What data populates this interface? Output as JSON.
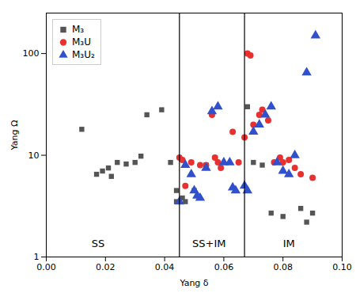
{
  "chart_data": {
    "type": "scatter",
    "xlabel": "Yang δ",
    "ylabel": "Yang Ω",
    "log": "y",
    "grid": false,
    "legend": "upper left",
    "xlim": [
      0.0,
      0.1
    ],
    "ylim": [
      1,
      250
    ],
    "xticks": [
      {
        "value": 0.0,
        "label": "0.00"
      },
      0.02,
      0.04,
      0.06,
      0.08,
      {
        "value": 0.1,
        "label": "0.10"
      }
    ],
    "yticks": [
      1,
      10,
      100
    ],
    "vlines": [
      0.045,
      0.067
    ],
    "annotations": [
      {
        "text": "SS",
        "x": 0.0175,
        "y": 1.25
      },
      {
        "text": "SS+IM",
        "x": 0.055,
        "y": 1.25
      },
      {
        "text": "IM",
        "x": 0.082,
        "y": 1.25
      }
    ],
    "series": [
      {
        "name": "M₃",
        "marker": "square",
        "color": "#555555",
        "x": [
          0.012,
          0.017,
          0.019,
          0.021,
          0.022,
          0.024,
          0.027,
          0.03,
          0.032,
          0.034,
          0.039,
          0.042,
          0.044,
          0.044,
          0.046,
          0.047,
          0.05,
          0.054,
          0.068,
          0.07,
          0.073,
          0.076,
          0.08,
          0.086,
          0.088,
          0.09
        ],
        "y": [
          18,
          6.5,
          7.0,
          7.5,
          6.2,
          8.5,
          8.2,
          8.5,
          9.8,
          25,
          28,
          8.5,
          4.5,
          3.5,
          3.8,
          3.5,
          4.5,
          8.0,
          30,
          8.5,
          8.0,
          2.7,
          2.5,
          3.0,
          2.2,
          2.7
        ]
      },
      {
        "name": "M₃U",
        "marker": "circle",
        "color": "#e83030",
        "x": [
          0.045,
          0.046,
          0.047,
          0.049,
          0.052,
          0.054,
          0.056,
          0.057,
          0.058,
          0.059,
          0.063,
          0.065,
          0.067,
          0.068,
          0.069,
          0.07,
          0.072,
          0.073,
          0.075,
          0.077,
          0.079,
          0.08,
          0.082,
          0.084,
          0.086,
          0.09
        ],
        "y": [
          9.5,
          9.0,
          5.0,
          8.5,
          8.0,
          8.0,
          25,
          9.5,
          8.5,
          7.5,
          17,
          8.5,
          15,
          100,
          96,
          20,
          25,
          28,
          22,
          8.5,
          9.5,
          8.5,
          9.0,
          7.5,
          6.5,
          6.0
        ]
      },
      {
        "name": "M₃U₂",
        "marker": "triangle",
        "color": "#3050cc",
        "x": [
          0.045,
          0.047,
          0.049,
          0.05,
          0.051,
          0.052,
          0.054,
          0.056,
          0.058,
          0.06,
          0.062,
          0.063,
          0.064,
          0.067,
          0.068,
          0.07,
          0.072,
          0.074,
          0.076,
          0.078,
          0.08,
          0.082,
          0.084,
          0.088,
          0.091
        ],
        "y": [
          3.5,
          8.0,
          6.5,
          4.5,
          4.0,
          3.8,
          7.5,
          27,
          30,
          8.5,
          8.5,
          4.8,
          4.5,
          5.0,
          4.5,
          17,
          20,
          25,
          30,
          8.5,
          7.0,
          6.5,
          10,
          65,
          150
        ]
      }
    ]
  }
}
